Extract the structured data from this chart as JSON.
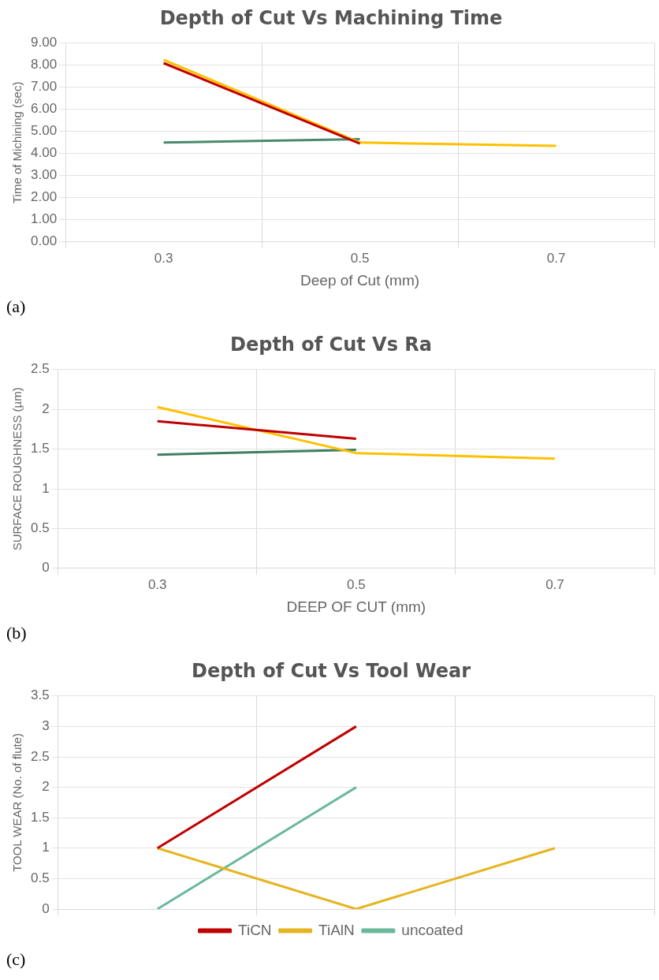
{
  "chart_data": [
    {
      "type": "line",
      "title": "Depth of Cut Vs Machining Time",
      "xlabel": "Deep of Cut (mm)",
      "ylabel": "Time of Michining (sec)",
      "categories": [
        "0.3",
        "0.5",
        "0.7"
      ],
      "series": [
        {
          "color": "#c00000",
          "values": [
            8.1,
            4.45,
            null
          ]
        },
        {
          "color": "#ffc000",
          "values": [
            8.25,
            4.5,
            4.35
          ]
        },
        {
          "color": "#4a8a6a",
          "values": [
            4.5,
            4.65,
            null
          ]
        }
      ],
      "ylim": [
        0,
        9
      ],
      "yticks": [
        {
          "value": 0,
          "label": "0.00"
        },
        {
          "value": 1,
          "label": "1.00"
        },
        {
          "value": 2,
          "label": "2.00"
        },
        {
          "value": 3,
          "label": "3.00"
        },
        {
          "value": 4,
          "label": "4.00"
        },
        {
          "value": 5,
          "label": "5.00"
        },
        {
          "value": 6,
          "label": "6.00"
        },
        {
          "value": 7,
          "label": "7.00"
        },
        {
          "value": 8,
          "label": "8.00"
        },
        {
          "value": 9,
          "label": "9.00"
        }
      ],
      "grid": true,
      "legend": false,
      "annotations": [
        "(a)"
      ]
    },
    {
      "type": "line",
      "title": "Depth of Cut Vs Ra",
      "xlabel": "DEEP OF CUT (mm)",
      "ylabel": "SURFACE ROUGHNESS (µm)",
      "categories": [
        "0.3",
        "0.5",
        "0.7"
      ],
      "series": [
        {
          "color": "#c00000",
          "values": [
            1.85,
            1.63,
            null
          ]
        },
        {
          "color": "#ffc000",
          "values": [
            2.03,
            1.45,
            1.38
          ]
        },
        {
          "color": "#3f7f5f",
          "values": [
            1.43,
            1.49,
            null
          ]
        }
      ],
      "ylim": [
        0,
        2.5
      ],
      "yticks": [
        0,
        0.5,
        1,
        1.5,
        2,
        2.5
      ],
      "grid": true,
      "legend": false,
      "annotations": [
        "(b)"
      ]
    },
    {
      "type": "line",
      "title": "Depth of Cut Vs Tool Wear",
      "ylabel": "TOOL WEAR (No. of flute)",
      "categories": [
        null,
        null,
        null
      ],
      "series": [
        {
          "name": "TiCN",
          "color": "#c00000",
          "values": [
            1,
            3,
            null
          ]
        },
        {
          "name": "TiAlN",
          "color": "#e6b420",
          "values": [
            1,
            0,
            1
          ]
        },
        {
          "name": "uncoated",
          "color": "#6ab89a",
          "values": [
            0,
            2,
            null
          ]
        }
      ],
      "ylim": [
        0,
        3.5
      ],
      "yticks": [
        0,
        0.5,
        1,
        1.5,
        2,
        2.5,
        3,
        3.5
      ],
      "grid": true,
      "legend": "bottom",
      "tick_labels": "y",
      "annotations": [
        "(c)"
      ]
    }
  ]
}
